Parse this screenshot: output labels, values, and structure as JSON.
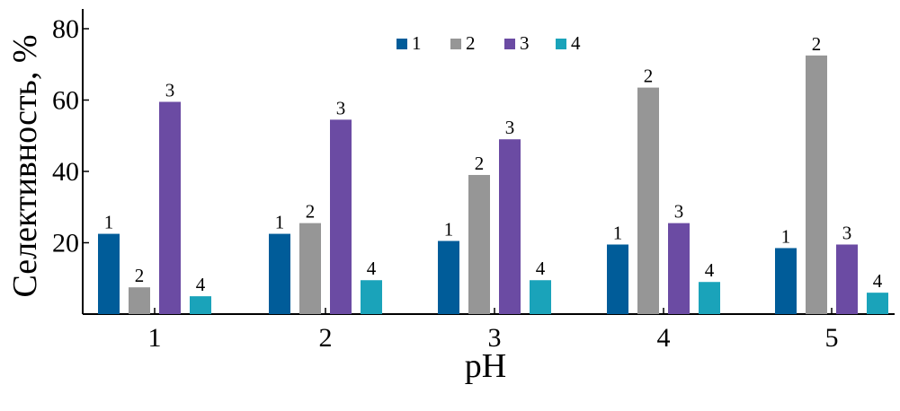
{
  "chart_data": {
    "type": "bar",
    "title": "",
    "xlabel": "pH",
    "ylabel": "Селективность, %",
    "categories": [
      "1",
      "2",
      "3",
      "4",
      "5"
    ],
    "ylim": [
      0,
      80
    ],
    "yticks": [
      20,
      40,
      60,
      80
    ],
    "grid": false,
    "legend_position": "top-center",
    "series": [
      {
        "name": "1",
        "color": "#005c99",
        "values": [
          22.5,
          22.5,
          20.5,
          19.5,
          18.5
        ]
      },
      {
        "name": "2",
        "color": "#969696",
        "values": [
          7.5,
          25.5,
          39,
          63.5,
          72.5
        ]
      },
      {
        "name": "3",
        "color": "#6b4ba3",
        "values": [
          59.5,
          54.5,
          49,
          25.5,
          19.5
        ]
      },
      {
        "name": "4",
        "color": "#1aa3ba",
        "values": [
          5,
          9.5,
          9.5,
          9,
          6
        ]
      }
    ]
  }
}
